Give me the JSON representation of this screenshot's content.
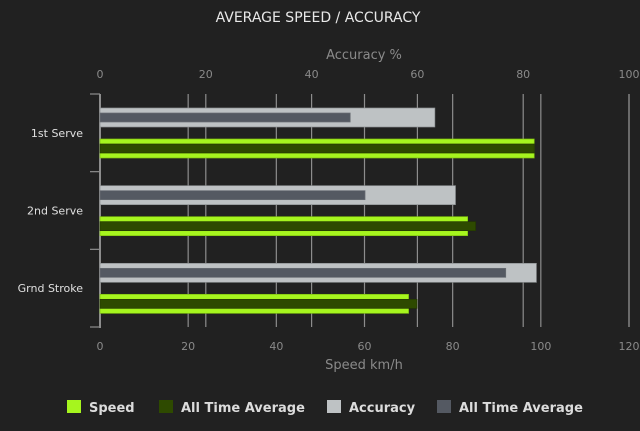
{
  "chart_data": {
    "type": "bar",
    "orientation": "horizontal",
    "title": "AVERAGE SPEED / ACCURACY",
    "categories": [
      "1st Serve",
      "2nd Serve",
      "Grnd Stroke"
    ],
    "x_bottom": {
      "label": "Speed km/h",
      "range": [
        0,
        120
      ],
      "ticks": [
        0,
        20,
        40,
        60,
        80,
        100,
        120
      ]
    },
    "x_top": {
      "label": "Accuracy %",
      "range": [
        0,
        100
      ],
      "ticks": [
        0,
        20,
        40,
        60,
        80,
        100
      ]
    },
    "grid": true,
    "legend_position": "bottom",
    "series": [
      {
        "name": "Speed",
        "axis": "bottom",
        "color": "#a6f51e",
        "values": [
          98.5,
          83.4,
          70.0
        ]
      },
      {
        "name": "All Time Average",
        "axis": "bottom",
        "color": "#2e4a00",
        "values": [
          98.5,
          85.2,
          71.9
        ]
      },
      {
        "name": "Accuracy",
        "axis": "top",
        "color": "#bec2c4",
        "values": [
          63.3,
          67.2,
          82.5
        ]
      },
      {
        "name": "All Time Average",
        "axis": "top",
        "color": "#545962",
        "values": [
          47.3,
          50.1,
          76.7
        ]
      }
    ]
  }
}
